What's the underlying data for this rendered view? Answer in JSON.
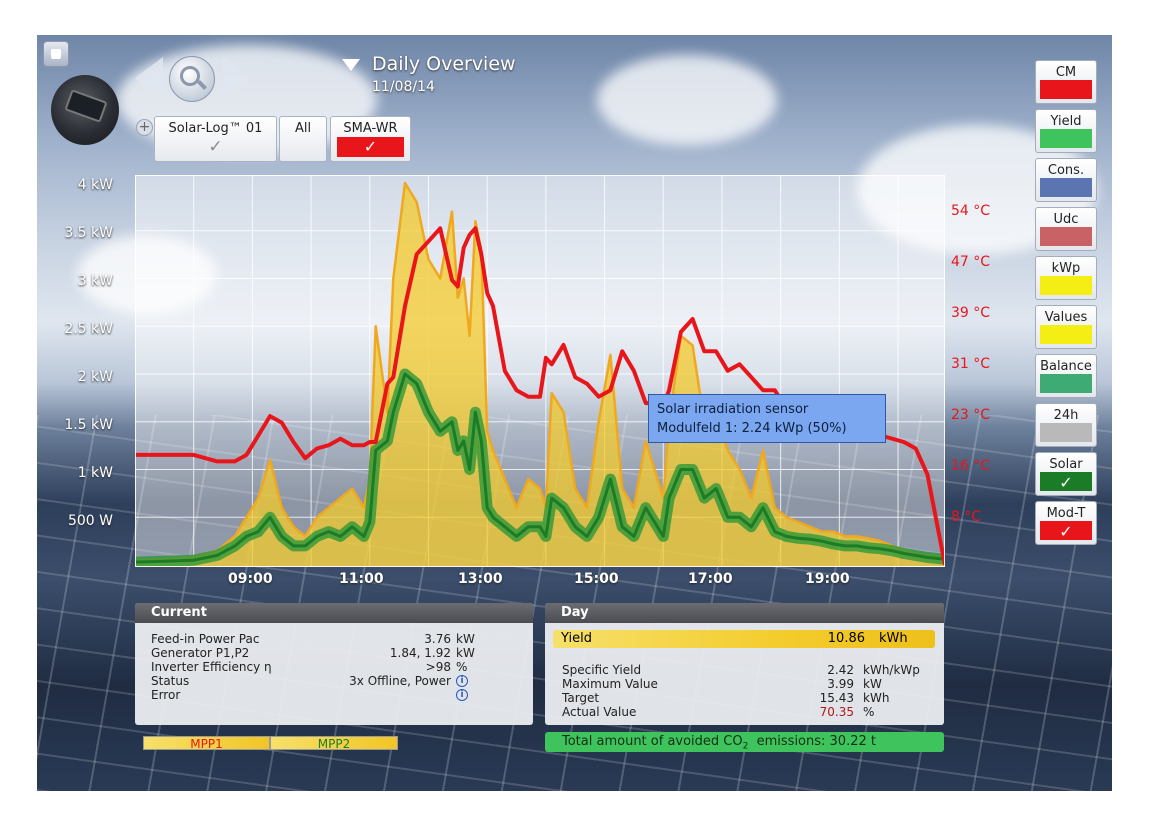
{
  "header": {
    "title": "Daily Overview",
    "date": "11/08/14",
    "devices": [
      {
        "label": "Solar-Log™ 01",
        "state": "check-gray"
      },
      {
        "label": "All",
        "state": "none"
      },
      {
        "label": "SMA-WR",
        "state": "check-red"
      }
    ]
  },
  "sidebar": {
    "buttons": [
      {
        "label": "CM",
        "color": "#e8161b",
        "checked": false
      },
      {
        "label": "Yield",
        "color": "#3fc35c",
        "checked": false
      },
      {
        "label": "Cons.",
        "color": "#5b74b2",
        "checked": false
      },
      {
        "label": "Udc",
        "color": "#c86264",
        "checked": false
      },
      {
        "label": "kWp",
        "color": "#f5ee14",
        "checked": false
      },
      {
        "label": "Values",
        "color": "#f5ee14",
        "checked": false
      },
      {
        "label": "Balance",
        "color": "#3dab73",
        "checked": false
      },
      {
        "label": "24h",
        "color": "#b9b9b9",
        "checked": false
      },
      {
        "label": "Solar",
        "color": "#1a7c27",
        "checked": true
      },
      {
        "label": "Mod-T",
        "color": "#e8161b",
        "checked": true
      }
    ],
    "check_glyph": "✓"
  },
  "chart_data": {
    "type": "area",
    "x_ticks": [
      "09:00",
      "11:00",
      "13:00",
      "15:00",
      "17:00",
      "19:00"
    ],
    "y_left_ticks": [
      "4 kW",
      "3.5 kW",
      "3 kW",
      "2.5 kW",
      "2 kW",
      "1.5 kW",
      "1 kW",
      "500 W"
    ],
    "y_right_ticks": [
      "54 °C",
      "47 °C",
      "39 °C",
      "31 °C",
      "23 °C",
      "16 °C",
      "8 °C"
    ],
    "ylim_kw": [
      0,
      4
    ],
    "ylim_c": [
      0,
      59
    ],
    "x_range_h": [
      7.0,
      20.8
    ],
    "series": [
      {
        "name": "Yield",
        "color": "#f3c92b",
        "x": [
          7.0,
          7.5,
          8.0,
          8.4,
          8.7,
          8.9,
          9.1,
          9.3,
          9.5,
          9.7,
          9.9,
          10.1,
          10.3,
          10.5,
          10.7,
          10.9,
          11.0,
          11.1,
          11.3,
          11.4,
          11.6,
          11.8,
          12.0,
          12.2,
          12.4,
          12.5,
          12.6,
          12.7,
          12.8,
          12.9,
          13.0,
          13.1,
          13.3,
          13.5,
          13.7,
          13.9,
          14.0,
          14.1,
          14.3,
          14.5,
          14.7,
          14.9,
          15.1,
          15.3,
          15.5,
          15.7,
          15.9,
          16.0,
          16.1,
          16.3,
          16.5,
          16.7,
          16.9,
          17.1,
          17.3,
          17.5,
          17.7,
          17.9,
          18.1,
          18.3,
          18.5,
          18.7,
          18.9,
          19.1,
          19.3,
          19.5,
          19.7,
          19.9,
          20.1,
          20.3,
          20.5,
          20.8
        ],
        "values": [
          0.05,
          0.06,
          0.08,
          0.15,
          0.3,
          0.5,
          0.7,
          1.1,
          0.6,
          0.4,
          0.3,
          0.5,
          0.6,
          0.7,
          0.8,
          0.6,
          0.9,
          2.5,
          1.6,
          3.0,
          4.0,
          3.8,
          3.2,
          3.0,
          3.7,
          2.8,
          3.0,
          2.4,
          3.6,
          3.3,
          1.4,
          1.2,
          0.9,
          0.6,
          0.9,
          0.8,
          0.6,
          1.8,
          1.6,
          0.8,
          0.6,
          1.5,
          2.2,
          0.8,
          0.6,
          1.3,
          0.9,
          0.7,
          1.5,
          2.4,
          2.3,
          1.5,
          1.6,
          1.2,
          1.0,
          0.7,
          1.2,
          0.6,
          0.5,
          0.45,
          0.4,
          0.35,
          0.35,
          0.3,
          0.3,
          0.28,
          0.25,
          0.2,
          0.15,
          0.12,
          0.1,
          0.08
        ]
      },
      {
        "name": "Solar",
        "color": "#1a7c27",
        "x": [
          7.0,
          7.5,
          8.0,
          8.4,
          8.7,
          8.9,
          9.1,
          9.3,
          9.5,
          9.7,
          9.9,
          10.1,
          10.3,
          10.5,
          10.7,
          10.9,
          11.0,
          11.1,
          11.3,
          11.4,
          11.6,
          11.8,
          12.0,
          12.2,
          12.4,
          12.5,
          12.6,
          12.7,
          12.8,
          12.9,
          13.0,
          13.1,
          13.3,
          13.5,
          13.7,
          13.9,
          14.0,
          14.1,
          14.3,
          14.5,
          14.7,
          14.9,
          15.1,
          15.3,
          15.5,
          15.7,
          15.9,
          16.0,
          16.1,
          16.3,
          16.5,
          16.7,
          16.9,
          17.1,
          17.3,
          17.5,
          17.7,
          17.9,
          18.1,
          18.3,
          18.5,
          18.7,
          18.9,
          19.1,
          19.3,
          19.5,
          19.7,
          19.9,
          20.1,
          20.3,
          20.5,
          20.8
        ],
        "values": [
          0.03,
          0.04,
          0.05,
          0.1,
          0.2,
          0.3,
          0.35,
          0.5,
          0.3,
          0.2,
          0.2,
          0.3,
          0.35,
          0.3,
          0.4,
          0.3,
          0.45,
          1.2,
          1.3,
          1.6,
          2.0,
          1.9,
          1.6,
          1.4,
          1.5,
          1.2,
          1.3,
          1.0,
          1.6,
          1.3,
          0.6,
          0.5,
          0.4,
          0.3,
          0.4,
          0.4,
          0.3,
          0.7,
          0.6,
          0.4,
          0.3,
          0.5,
          0.9,
          0.4,
          0.3,
          0.6,
          0.4,
          0.3,
          0.7,
          1.0,
          1.0,
          0.7,
          0.8,
          0.5,
          0.5,
          0.4,
          0.6,
          0.35,
          0.3,
          0.28,
          0.27,
          0.25,
          0.22,
          0.2,
          0.2,
          0.18,
          0.17,
          0.15,
          0.12,
          0.1,
          0.08,
          0.06
        ]
      },
      {
        "name": "Mod-T",
        "color": "#e8161b",
        "x": [
          7.0,
          7.5,
          8.0,
          8.4,
          8.7,
          8.9,
          9.1,
          9.3,
          9.5,
          9.7,
          9.9,
          10.1,
          10.3,
          10.5,
          10.7,
          10.9,
          11.0,
          11.1,
          11.3,
          11.4,
          11.6,
          11.8,
          12.0,
          12.2,
          12.4,
          12.5,
          12.6,
          12.7,
          12.8,
          12.9,
          13.0,
          13.1,
          13.3,
          13.5,
          13.7,
          13.9,
          14.0,
          14.1,
          14.3,
          14.5,
          14.7,
          14.9,
          15.1,
          15.3,
          15.5,
          15.7,
          15.9,
          16.0,
          16.1,
          16.3,
          16.5,
          16.7,
          16.9,
          17.1,
          17.3,
          17.5,
          17.7,
          17.9,
          18.1,
          18.3,
          18.5,
          18.7,
          18.9,
          19.1,
          19.3,
          19.5,
          19.7,
          19.9,
          20.1,
          20.3,
          20.5,
          20.8
        ],
        "values": [
          17.0,
          17.0,
          17.0,
          16.0,
          16.0,
          17.0,
          20.0,
          23.0,
          22.0,
          19.0,
          16.5,
          18.0,
          18.5,
          19.5,
          18.5,
          18.5,
          19.0,
          19.0,
          28.0,
          29.0,
          40.0,
          48.0,
          50.0,
          52.0,
          44.0,
          43.0,
          49.0,
          51.0,
          52.0,
          48.0,
          42.0,
          40.0,
          30.0,
          27.0,
          26.0,
          26.0,
          32.0,
          31.0,
          34.0,
          29.0,
          28.0,
          26.0,
          27.0,
          33.0,
          30.0,
          25.0,
          25.0,
          24.5,
          27.0,
          36.0,
          38.0,
          33.0,
          33.0,
          30.0,
          31.0,
          29.0,
          27.0,
          27.0,
          24.0,
          23.0,
          22.0,
          21.5,
          21.0,
          21.0,
          20.5,
          20.0,
          20.0,
          19.5,
          19.0,
          18.0,
          14.0,
          0.0
        ]
      }
    ]
  },
  "tooltip": {
    "line1": "Solar irradiation sensor",
    "line2": "Modulfeld 1: 2.24 kWp (50%)"
  },
  "current": {
    "title": "Current",
    "rows": [
      {
        "label": "Feed-in Power Pac",
        "value": "3.76",
        "unit": "kW"
      },
      {
        "label": "Generator P1,P2",
        "value": "1.84, 1.92",
        "unit": "kW"
      },
      {
        "label": "Inverter Efficiency η",
        "value": ">98",
        "unit": "%"
      },
      {
        "label": "Status",
        "value": "3x Offline, Power",
        "unit": "i"
      },
      {
        "label": "Error",
        "value": "",
        "unit": "i"
      }
    ]
  },
  "day": {
    "title": "Day",
    "yield": {
      "label": "Yield",
      "value": "10.86",
      "unit": "kWh"
    },
    "rows": [
      {
        "label": "Specific Yield",
        "value": "2.42",
        "unit": "kWh/kWp"
      },
      {
        "label": "Maximum Value",
        "value": "3.99",
        "unit": "kW"
      },
      {
        "label": "Target",
        "value": "15.43",
        "unit": "kWh"
      },
      {
        "label": "Actual Value",
        "value": "70.35",
        "unit": "%"
      }
    ]
  },
  "footer": {
    "mpp1": "MPP1",
    "mpp2": "MPP2",
    "co2_prefix": "Total amount of avoided CO",
    "co2_sub": "2",
    "co2_suffix": "  emissions: 30.22 t"
  },
  "colors": {
    "mpp1_text": "#e8161b",
    "mpp2_text": "#1a7c27",
    "actual_value": "#b01818"
  }
}
